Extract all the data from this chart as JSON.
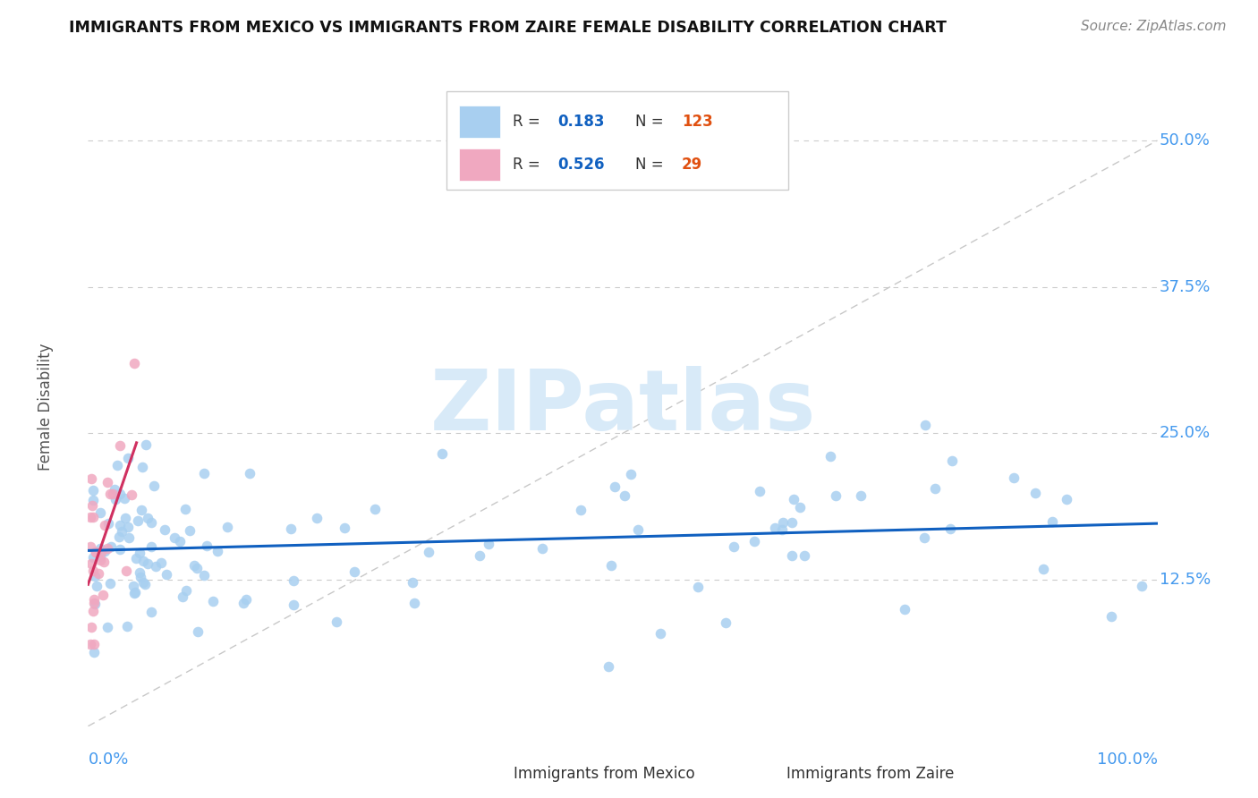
{
  "title": "IMMIGRANTS FROM MEXICO VS IMMIGRANTS FROM ZAIRE FEMALE DISABILITY CORRELATION CHART",
  "source": "Source: ZipAtlas.com",
  "ylabel": "Female Disability",
  "ytick_vals": [
    0.125,
    0.25,
    0.375,
    0.5
  ],
  "ytick_labels": [
    "12.5%",
    "25.0%",
    "37.5%",
    "50.0%"
  ],
  "xlim": [
    0.0,
    1.0
  ],
  "ylim": [
    0.0,
    0.545
  ],
  "mexico_R": 0.183,
  "mexico_N": 123,
  "zaire_R": 0.526,
  "zaire_N": 29,
  "mexico_color": "#a8cff0",
  "zaire_color": "#f0a8c0",
  "mexico_line_color": "#1060c0",
  "zaire_line_color": "#d03060",
  "diagonal_color": "#c8c8c8",
  "watermark_text": "ZIPatlas",
  "watermark_color": "#d8eaf8",
  "legend_label_color": "#333333",
  "legend_r_color": "#1060c0",
  "legend_n_color": "#e05010",
  "bottom_legend_mexico": "Immigrants from Mexico",
  "bottom_legend_zaire": "Immigrants from Zaire",
  "grid_color": "#cccccc",
  "right_axis_color": "#4499ee"
}
